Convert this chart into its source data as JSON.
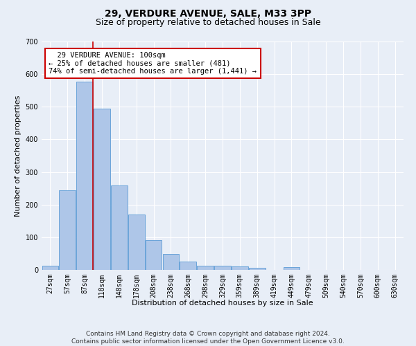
{
  "title": "29, VERDURE AVENUE, SALE, M33 3PP",
  "subtitle": "Size of property relative to detached houses in Sale",
  "xlabel": "Distribution of detached houses by size in Sale",
  "ylabel": "Number of detached properties",
  "bin_labels": [
    "27sqm",
    "57sqm",
    "87sqm",
    "118sqm",
    "148sqm",
    "178sqm",
    "208sqm",
    "238sqm",
    "268sqm",
    "298sqm",
    "329sqm",
    "359sqm",
    "389sqm",
    "419sqm",
    "449sqm",
    "479sqm",
    "509sqm",
    "540sqm",
    "570sqm",
    "600sqm",
    "630sqm"
  ],
  "bar_values": [
    13,
    243,
    578,
    495,
    258,
    170,
    92,
    48,
    25,
    13,
    12,
    10,
    7,
    0,
    8,
    0,
    0,
    0,
    0,
    0,
    0
  ],
  "bar_color": "#aec6e8",
  "bar_edge_color": "#5b9bd5",
  "background_color": "#e8eef7",
  "grid_color": "#ffffff",
  "ylim": [
    0,
    700
  ],
  "yticks": [
    0,
    100,
    200,
    300,
    400,
    500,
    600,
    700
  ],
  "vline_x_index": 2.47,
  "annotation_text": "  29 VERDURE AVENUE: 100sqm\n← 25% of detached houses are smaller (481)\n74% of semi-detached houses are larger (1,441) →",
  "annotation_box_color": "#ffffff",
  "annotation_box_edge": "#cc0000",
  "vline_color": "#cc0000",
  "footer_text": "Contains HM Land Registry data © Crown copyright and database right 2024.\nContains public sector information licensed under the Open Government Licence v3.0.",
  "title_fontsize": 10,
  "subtitle_fontsize": 9,
  "annotation_fontsize": 7.5,
  "axis_label_fontsize": 8,
  "tick_fontsize": 7,
  "footer_fontsize": 6.5
}
